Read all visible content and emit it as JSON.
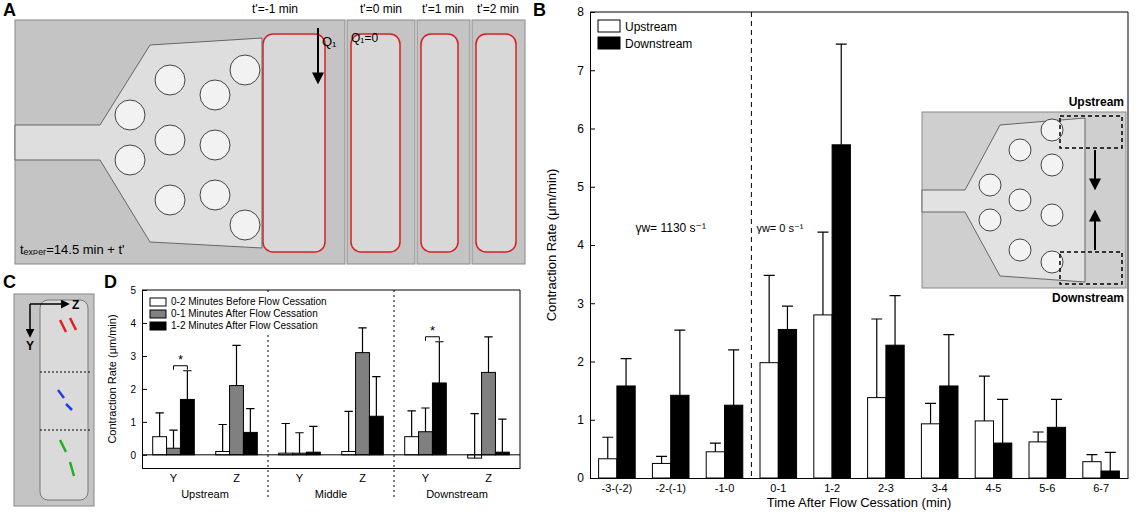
{
  "chart_data": [
    {
      "type": "bar",
      "ylabel": "Contraction Rate (μm/min)",
      "xlabel": "Time After Flow Cessation (min)",
      "categories": [
        "-3-(-2)",
        "-2-(-1)",
        "-1-0",
        "0-1",
        "1-2",
        "2-3",
        "3-4",
        "4-5",
        "5-6",
        "6-7"
      ],
      "series": [
        {
          "name": "Upstream",
          "color": "#ffffff",
          "values": [
            0.33,
            0.25,
            0.45,
            1.98,
            2.8,
            1.38,
            0.93,
            0.98,
            0.62,
            0.28
          ],
          "errors": [
            0.37,
            0.12,
            0.15,
            1.5,
            1.42,
            1.35,
            0.35,
            0.77,
            0.17,
            0.12
          ]
        },
        {
          "name": "Downstream",
          "color": "#000000",
          "values": [
            1.58,
            1.42,
            1.25,
            2.55,
            5.72,
            2.28,
            1.58,
            0.6,
            0.87,
            0.12
          ],
          "errors": [
            0.47,
            1.12,
            0.95,
            0.4,
            1.73,
            0.85,
            0.88,
            0.75,
            0.48,
            0.32
          ]
        }
      ],
      "ylim": [
        0,
        8
      ],
      "yticks": [
        0,
        1,
        2,
        3,
        4,
        5,
        6,
        7,
        8
      ],
      "grid": false,
      "legend": "upper left",
      "annotations": [
        "γw= 1130 s⁻¹",
        "γw= 0 s⁻¹"
      ],
      "divider_before": "0-1",
      "inset": {
        "labels": [
          "Upstream",
          "Downstream"
        ]
      }
    },
    {
      "type": "bar",
      "ylabel": "Contraction Rate (μm/min)",
      "categories": [
        "Y",
        "Z",
        "Y",
        "Z",
        "Y",
        "Z"
      ],
      "groups": [
        "Upstream",
        "Middle",
        "Downstream"
      ],
      "series": [
        {
          "name": "0-2 Minutes Before Flow Cessation",
          "color": "#ffffff",
          "values": [
            0.55,
            0.1,
            0.05,
            0.1,
            0.55,
            -0.1
          ],
          "errors": [
            0.72,
            0.82,
            0.9,
            1.22,
            0.78,
            1.35
          ]
        },
        {
          "name": "0-1 Minutes After Flow Cessation",
          "color": "#808080",
          "values": [
            0.2,
            2.1,
            0.05,
            3.1,
            0.7,
            2.5
          ],
          "errors": [
            0.55,
            1.22,
            0.62,
            0.75,
            0.72,
            1.08
          ]
        },
        {
          "name": "1-2 Minutes After Flow Cessation",
          "color": "#000000",
          "values": [
            1.68,
            0.68,
            0.08,
            1.17,
            2.18,
            0.08
          ],
          "errors": [
            0.87,
            0.72,
            0.78,
            1.2,
            1.25,
            1.0
          ]
        }
      ],
      "ylim": [
        -0.4,
        5
      ],
      "yticks": [
        0,
        1,
        2,
        3,
        4,
        5
      ],
      "grid": false,
      "legend": "upper left",
      "significance": [
        {
          "category": 0,
          "text": "*"
        },
        {
          "category": 4,
          "text": "*"
        }
      ]
    }
  ],
  "panel_labels": [
    "A",
    "B",
    "C",
    "D"
  ],
  "panel_a": {
    "frame_labels": [
      "t'=-1 min",
      "t'=0 min",
      "t'=1 min",
      "t'=2 min"
    ],
    "flow_label": "Q₁",
    "stopped_flow_label": "Q₁=0",
    "time_label": "tₑₓₚₑᵣ=14.5 min + t'"
  },
  "panel_c": {
    "axis_labels": [
      "Y",
      "Z"
    ]
  }
}
